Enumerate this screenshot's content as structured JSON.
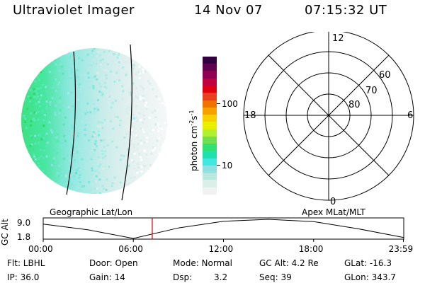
{
  "header": {
    "instrument": "Ultraviolet Imager",
    "date": "14 Nov 07",
    "time": "07:15:32 UT"
  },
  "colorbar": {
    "unit_label": "photon cm",
    "unit_sup1": "-2",
    "unit_mid": "s",
    "unit_sup2": "-1",
    "tick_100": "100",
    "tick_10": "10",
    "scale": "log",
    "colors": [
      "#f2f2f2",
      "#d9efe8",
      "#b8e6e0",
      "#8fe0e0",
      "#40e8e0",
      "#20e0b0",
      "#30e070",
      "#70e050",
      "#b0f030",
      "#e8f000",
      "#f8d000",
      "#f8a000",
      "#f07000",
      "#e84020",
      "#e00010",
      "#c00040",
      "#900050",
      "#600050",
      "#300040"
    ]
  },
  "polar": {
    "mlt_labels": {
      "top": "12",
      "left": "18",
      "right": "6",
      "bottom": "0"
    },
    "lat_labels": {
      "r60": "60",
      "r70": "70",
      "r80": "80"
    }
  },
  "timeline": {
    "left_label": "Geographic Lat/Lon",
    "right_label": "Apex MLat/MLT",
    "y_label": "GC Alt",
    "y_max": "9.0",
    "y_min": "1.8",
    "x_ticks": [
      "00:00",
      "06:00",
      "12:00",
      "18:00",
      "23:59"
    ],
    "marker_time": "07:15:32",
    "marker_color": "#cc0000"
  },
  "info": {
    "filter": "Flt: LBHL",
    "ip": "IP: 36.0",
    "door": "Door: Open",
    "gain": "Gain: 14",
    "mode": "Mode: Normal",
    "dsp_label": "Dsp:",
    "dsp_value": "3.2",
    "gc_alt": "GC Alt: 4.2 Re",
    "seq": "Seq: 39",
    "glat": "GLat: -16.3",
    "glon": "GLon: 343.7"
  }
}
